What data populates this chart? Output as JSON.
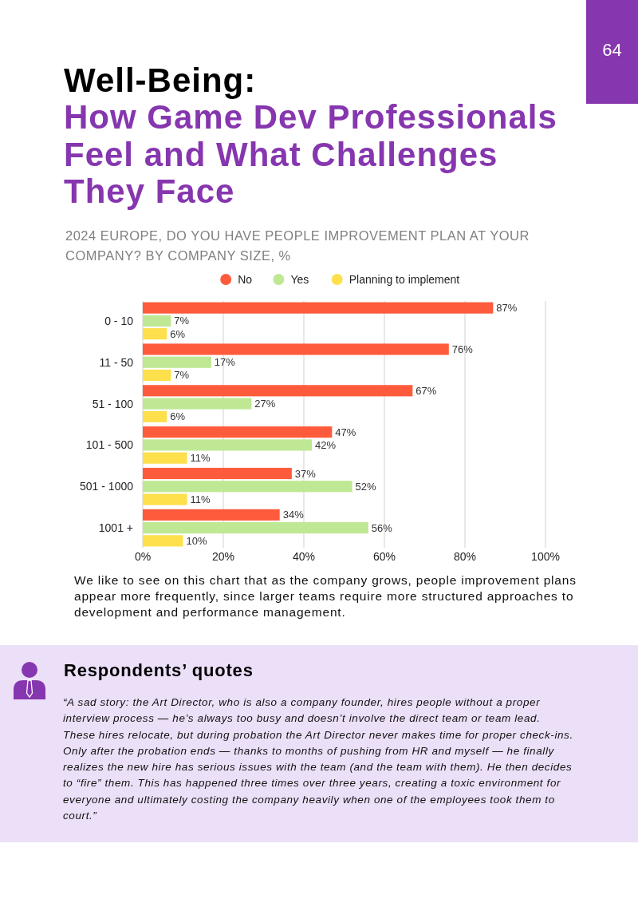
{
  "chart_data": {
    "type": "bar",
    "orientation": "horizontal",
    "title": "Well-Being:",
    "subtitle": "How Game Dev Professionals Feel and What Challenges They Face",
    "annotations": [
      "2024 EUROPE, DO YOU HAVE PEOPLE IMPROVEMENT PLAN AT YOUR COMPANY? BY COMPANY SIZE, %",
      "We like to see on this chart that as the company grows, people improvement plans appear more frequently, since larger teams require more structured approaches to development and performance management.",
      "Respondents’ quotes",
      "“A sad story: the Art Director, who is also a company founder, hires people without a proper interview process — he’s always too busy and doesn’t involve the direct team or team lead. These hires relocate, but during probation the Art Director never makes time for proper check-ins. Only after the probation ends — thanks to months of pushing from HR and myself — he finally realizes the new hire has serious issues with the team (and the team with them). He then decides to “fire” them. This has happened three times over three years, creating a toxic environment for everyone and ultimately costing the company heavily when one of the employees took them to court.”",
      "64"
    ],
    "categories": [
      "0 - 10",
      "11 - 50",
      "51 - 100",
      "101 - 500",
      "501 - 1000",
      "1001 +"
    ],
    "series": [
      {
        "name": "No",
        "color": "#fe5b3c",
        "values": [
          87,
          76,
          67,
          47,
          37,
          34
        ],
        "value_labels": [
          "87%",
          "76%",
          "67%",
          "47%",
          "37%",
          "34%"
        ]
      },
      {
        "name": "Yes",
        "color": "#bfe894",
        "values": [
          7,
          17,
          27,
          42,
          52,
          56
        ],
        "value_labels": [
          "7%",
          "17%",
          "27%",
          "42%",
          "52%",
          "56%"
        ]
      },
      {
        "name": "Planning to implement",
        "color": "#fedf4c",
        "values": [
          6,
          7,
          6,
          11,
          11,
          10
        ],
        "value_labels": [
          "6%",
          "7%",
          "6%",
          "11%",
          "11%",
          "10%"
        ]
      }
    ],
    "xlim": [
      0,
      100
    ],
    "xticks": [
      {
        "value": 0,
        "label": "0%"
      },
      {
        "value": 20,
        "label": "20%"
      },
      {
        "value": 40,
        "label": "40%"
      },
      {
        "value": 60,
        "label": "60%"
      },
      {
        "value": 80,
        "label": "80%"
      },
      {
        "value": 100,
        "label": "100%"
      }
    ],
    "grid": "x",
    "legend": "top"
  }
}
